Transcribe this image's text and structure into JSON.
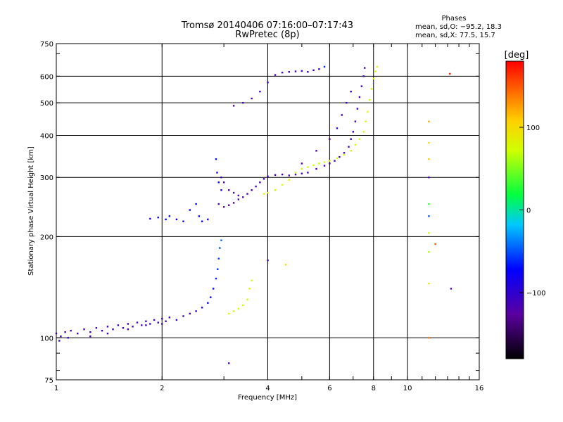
{
  "chart_data": {
    "type": "scatter",
    "title": "Tromsø 20140406 07:16:00–07:17:43",
    "subtitle": "RwPretec (8p)",
    "xlabel": "Frequency [MHz]",
    "ylabel": "Stationary phase Virtual Height [km]",
    "x_scale": "log",
    "y_scale": "log",
    "xlim": [
      1,
      16
    ],
    "ylim": [
      75,
      750
    ],
    "x_ticks": [
      1,
      2,
      4,
      6,
      8,
      10,
      16
    ],
    "y_ticks": [
      75,
      100,
      200,
      300,
      400,
      500,
      600,
      750
    ],
    "grid": true,
    "phases": {
      "heading": "Phases",
      "line1": "mean, sd,O: −95.2, 18.3",
      "line2": "mean, sd,X:  77.5, 15.7"
    },
    "colorbar": {
      "label": "[deg]",
      "range": [
        -180,
        180
      ],
      "ticks": [
        100,
        0,
        -100
      ]
    },
    "series": [
      {
        "points": [
          [
            1.0,
            103,
            -110
          ],
          [
            1.03,
            101,
            -110
          ],
          [
            1.06,
            104,
            -112
          ],
          [
            1.1,
            105,
            -108
          ],
          [
            1.15,
            103,
            -110
          ],
          [
            1.2,
            106,
            -115
          ],
          [
            1.25,
            104,
            -112
          ],
          [
            1.3,
            107,
            -110
          ],
          [
            1.35,
            105,
            -108
          ],
          [
            1.4,
            108,
            -112
          ],
          [
            1.45,
            106,
            -110
          ],
          [
            1.5,
            109,
            -114
          ],
          [
            1.55,
            107,
            -110
          ],
          [
            1.6,
            110,
            -108
          ],
          [
            1.65,
            108,
            -112
          ],
          [
            1.7,
            111,
            -110
          ],
          [
            1.75,
            109,
            -112
          ],
          [
            1.8,
            112,
            -108
          ],
          [
            1.85,
            110,
            -110
          ],
          [
            1.9,
            113,
            -112
          ],
          [
            1.95,
            111,
            -110
          ],
          [
            2.0,
            114,
            -108
          ],
          [
            2.05,
            112,
            -112
          ],
          [
            2.1,
            115,
            -110
          ],
          [
            2.2,
            113,
            -108
          ],
          [
            2.3,
            116,
            -110
          ],
          [
            2.4,
            118,
            -112
          ],
          [
            2.5,
            120,
            -100
          ],
          [
            2.6,
            123,
            -90
          ],
          [
            2.7,
            127,
            -80
          ],
          [
            2.75,
            132,
            -75
          ],
          [
            2.8,
            140,
            -70
          ],
          [
            2.85,
            150,
            -65
          ],
          [
            2.88,
            160,
            -60
          ],
          [
            2.9,
            172,
            -55
          ],
          [
            2.92,
            185,
            -50
          ],
          [
            2.95,
            195,
            -45
          ],
          [
            1.02,
            98,
            -100
          ],
          [
            1.08,
            100,
            -105
          ],
          [
            1.25,
            101,
            -108
          ],
          [
            1.4,
            103,
            -110
          ],
          [
            1.6,
            106,
            -112
          ],
          [
            1.8,
            109,
            -110
          ],
          [
            2.0,
            110,
            -108
          ]
        ]
      },
      {
        "points": [
          [
            1.85,
            226,
            -80
          ],
          [
            1.95,
            228,
            -80
          ],
          [
            2.05,
            225,
            -75
          ],
          [
            2.1,
            230,
            -78
          ],
          [
            2.2,
            225,
            -80
          ],
          [
            2.3,
            222,
            -75
          ],
          [
            2.4,
            240,
            -72
          ],
          [
            2.5,
            250,
            -70
          ],
          [
            2.55,
            230,
            -75
          ],
          [
            2.6,
            222,
            -78
          ],
          [
            2.7,
            225,
            -80
          ],
          [
            2.85,
            340,
            -70
          ],
          [
            2.87,
            310,
            -72
          ],
          [
            2.9,
            290,
            -75
          ],
          [
            2.95,
            275,
            -78
          ]
        ]
      },
      {
        "points": [
          [
            2.9,
            250,
            -120
          ],
          [
            3.0,
            245,
            -125
          ],
          [
            3.1,
            248,
            -130
          ],
          [
            3.2,
            252,
            -128
          ],
          [
            3.3,
            258,
            -125
          ],
          [
            3.4,
            262,
            -122
          ],
          [
            3.5,
            268,
            -120
          ],
          [
            3.6,
            275,
            -118
          ],
          [
            3.7,
            282,
            -115
          ],
          [
            3.8,
            290,
            -112
          ],
          [
            3.9,
            297,
            -110
          ],
          [
            4.0,
            302,
            -110
          ],
          [
            4.2,
            305,
            -108
          ],
          [
            4.4,
            306,
            -110
          ],
          [
            4.6,
            304,
            -108
          ],
          [
            4.8,
            306,
            -110
          ],
          [
            5.0,
            308,
            -112
          ],
          [
            5.2,
            310,
            -110
          ],
          [
            5.5,
            318,
            -112
          ],
          [
            5.8,
            325,
            -110
          ],
          [
            6.0,
            330,
            -108
          ],
          [
            6.2,
            336,
            -110
          ],
          [
            6.4,
            345,
            -112
          ],
          [
            6.6,
            355,
            -110
          ],
          [
            6.8,
            370,
            -112
          ],
          [
            6.9,
            390,
            -110
          ],
          [
            7.0,
            410,
            -108
          ],
          [
            7.1,
            440,
            -110
          ],
          [
            7.2,
            480,
            -112
          ],
          [
            7.3,
            520,
            -110
          ],
          [
            7.4,
            560,
            -112
          ],
          [
            7.5,
            600,
            -110
          ],
          [
            7.55,
            635,
            -110
          ],
          [
            3.1,
            275,
            -115
          ],
          [
            3.2,
            270,
            -118
          ],
          [
            3.3,
            265,
            -120
          ],
          [
            3.0,
            290,
            -110
          ],
          [
            2.95,
            300,
            -108
          ]
        ]
      },
      {
        "points": [
          [
            3.2,
            490,
            -120
          ],
          [
            3.4,
            500,
            -118
          ],
          [
            3.6,
            515,
            -115
          ],
          [
            3.8,
            540,
            -112
          ],
          [
            4.0,
            575,
            -110
          ],
          [
            4.2,
            605,
            -112
          ],
          [
            4.4,
            615,
            -110
          ],
          [
            4.6,
            618,
            -108
          ],
          [
            4.8,
            620,
            -110
          ],
          [
            5.0,
            622,
            -112
          ],
          [
            5.2,
            618,
            -110
          ],
          [
            5.4,
            625,
            -108
          ],
          [
            5.6,
            630,
            -110
          ],
          [
            5.8,
            640,
            -60
          ],
          [
            5.0,
            330,
            -120
          ],
          [
            5.5,
            360,
            -118
          ],
          [
            6.0,
            390,
            -115
          ],
          [
            6.3,
            420,
            -112
          ],
          [
            6.5,
            460,
            -110
          ],
          [
            6.7,
            500,
            -112
          ],
          [
            6.9,
            540,
            -110
          ]
        ]
      },
      {
        "points": [
          [
            4.0,
            270,
            70
          ],
          [
            4.2,
            275,
            70
          ],
          [
            4.4,
            285,
            72
          ],
          [
            4.6,
            295,
            70
          ],
          [
            4.8,
            310,
            68
          ],
          [
            5.0,
            318,
            70
          ],
          [
            5.2,
            322,
            72
          ],
          [
            5.4,
            326,
            70
          ],
          [
            5.6,
            330,
            68
          ],
          [
            5.8,
            333,
            70
          ],
          [
            6.0,
            336,
            72
          ],
          [
            6.3,
            342,
            70
          ],
          [
            6.6,
            350,
            68
          ],
          [
            6.9,
            360,
            70
          ],
          [
            7.1,
            375,
            72
          ],
          [
            7.3,
            390,
            70
          ],
          [
            7.5,
            410,
            68
          ],
          [
            7.6,
            440,
            70
          ],
          [
            7.7,
            470,
            72
          ],
          [
            7.8,
            510,
            70
          ],
          [
            7.9,
            550,
            68
          ],
          [
            8.0,
            590,
            70
          ],
          [
            8.1,
            620,
            72
          ],
          [
            8.2,
            640,
            80
          ],
          [
            3.9,
            268,
            75
          ]
        ]
      },
      {
        "points": [
          [
            3.1,
            118,
            70
          ],
          [
            3.2,
            120,
            72
          ],
          [
            3.3,
            122,
            70
          ],
          [
            3.4,
            125,
            68
          ],
          [
            3.5,
            130,
            70
          ],
          [
            3.55,
            140,
            72
          ],
          [
            3.6,
            148,
            75
          ]
        ]
      },
      {
        "points": [
          [
            11.5,
            440,
            120
          ],
          [
            11.5,
            380,
            100
          ],
          [
            11.5,
            340,
            110
          ],
          [
            11.5,
            300,
            -110
          ],
          [
            11.5,
            250,
            30
          ],
          [
            11.5,
            230,
            -50
          ],
          [
            11.5,
            205,
            80
          ],
          [
            11.5,
            180,
            60
          ],
          [
            11.5,
            145,
            90
          ],
          [
            11.5,
            100,
            140
          ],
          [
            12.0,
            190,
            150
          ],
          [
            13.2,
            610,
            170
          ],
          [
            13.3,
            140,
            -120
          ],
          [
            3.1,
            84,
            -115
          ],
          [
            4.5,
            165,
            100
          ],
          [
            4.0,
            170,
            -115
          ]
        ]
      }
    ]
  }
}
